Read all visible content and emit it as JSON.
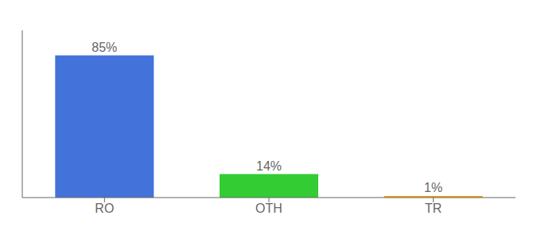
{
  "chart_data": {
    "type": "bar",
    "categories": [
      "RO",
      "OTH",
      "TR"
    ],
    "values": [
      85,
      14,
      1
    ],
    "colors": [
      "#4472db",
      "#33cc33",
      "#f0a500"
    ],
    "ylim": [
      0,
      100
    ],
    "data_labels": true,
    "value_labels": [
      "85%",
      "14%",
      "1%"
    ],
    "tick_labels": "x",
    "grid": false
  }
}
